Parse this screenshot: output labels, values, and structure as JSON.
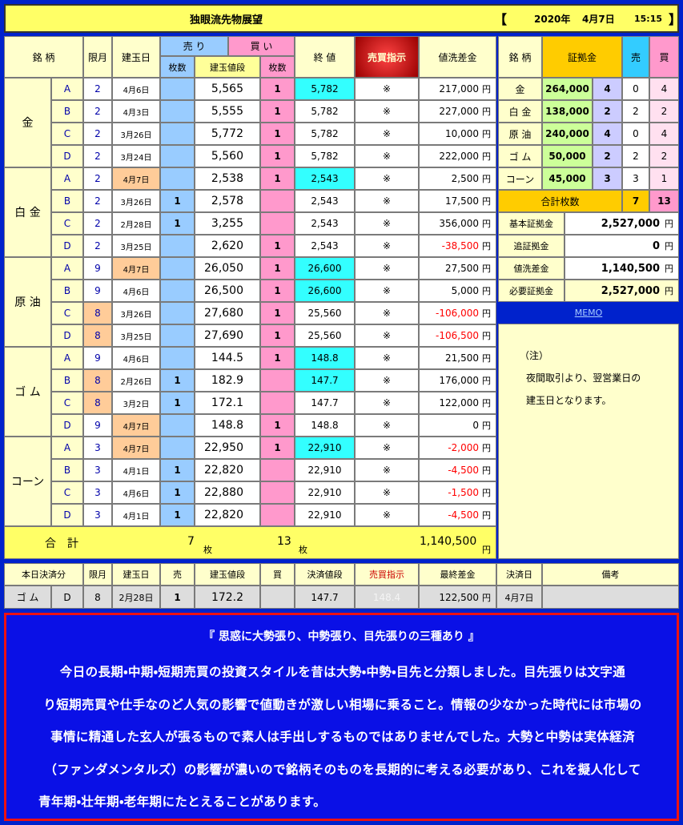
{
  "header": {
    "title": "独眼流先物展望",
    "bracket_open": "【",
    "year": "2020年",
    "date": "4月7日",
    "time": "15:15",
    "bracket_close": "】"
  },
  "main_table": {
    "columns": {
      "name": "銘 柄",
      "month": "限月",
      "date": "建玉日",
      "sell": "売 り",
      "buy": "買 い",
      "close": "終 値",
      "signal": "売買指示",
      "diff": "値洗差金"
    },
    "sub_columns": {
      "sell": "枚数",
      "price": "建玉値段",
      "buy": "枚数"
    },
    "yen": "円",
    "groups": [
      {
        "name": "金",
        "rows": [
          {
            "label": "A",
            "month": "2",
            "date": "4月6日",
            "price": "5,565",
            "buy": "1",
            "close": "5,782",
            "signal": "※",
            "diff": "217,000",
            "colors": {
              "close": "#33ffff"
            }
          },
          {
            "label": "B",
            "month": "2",
            "date": "4月3日",
            "price": "5,555",
            "buy": "1",
            "close": "5,782",
            "signal": "※",
            "diff": "227,000"
          },
          {
            "label": "C",
            "month": "2",
            "date": "3月26日",
            "price": "5,772",
            "buy": "1",
            "close": "5,782",
            "signal": "※",
            "diff": "10,000"
          },
          {
            "label": "D",
            "month": "2",
            "date": "3月24日",
            "price": "5,560",
            "buy": "1",
            "close": "5,782",
            "signal": "※",
            "diff": "222,000"
          }
        ]
      },
      {
        "name": "白 金",
        "rows": [
          {
            "label": "A",
            "month": "2",
            "date": "4月7日",
            "price": "2,538",
            "buy": "1",
            "close": "2,543",
            "signal": "※",
            "diff": "2,500",
            "colors": {
              "date": "#ffcc99",
              "close": "#33ffff"
            }
          },
          {
            "label": "B",
            "month": "2",
            "date": "3月26日",
            "sell": "1",
            "price": "2,578",
            "close": "2,543",
            "signal": "※",
            "diff": "17,500"
          },
          {
            "label": "C",
            "month": "2",
            "date": "2月28日",
            "sell": "1",
            "price": "3,255",
            "close": "2,543",
            "signal": "※",
            "diff": "356,000"
          },
          {
            "label": "D",
            "month": "2",
            "date": "3月25日",
            "price": "2,620",
            "buy": "1",
            "close": "2,543",
            "signal": "※",
            "diff": "-38,500"
          }
        ]
      },
      {
        "name": "原 油",
        "rows": [
          {
            "label": "A",
            "month": "9",
            "date": "4月7日",
            "price": "26,050",
            "buy": "1",
            "close": "26,600",
            "signal": "※",
            "diff": "27,500",
            "colors": {
              "date": "#ffcc99",
              "close": "#33ffff"
            }
          },
          {
            "label": "B",
            "month": "9",
            "date": "4月6日",
            "price": "26,500",
            "buy": "1",
            "close": "26,600",
            "signal": "※",
            "diff": "5,000",
            "colors": {
              "close": "#33ffff"
            }
          },
          {
            "label": "C",
            "month": "8",
            "date": "3月26日",
            "price": "27,680",
            "buy": "1",
            "close": "25,560",
            "signal": "※",
            "diff": "-106,000",
            "colors": {
              "month": "#ffcc99"
            }
          },
          {
            "label": "D",
            "month": "8",
            "date": "3月25日",
            "price": "27,690",
            "buy": "1",
            "close": "25,560",
            "signal": "※",
            "diff": "-106,500",
            "colors": {
              "month": "#ffcc99"
            }
          }
        ]
      },
      {
        "name": "ゴ ム",
        "rows": [
          {
            "label": "A",
            "month": "9",
            "date": "4月6日",
            "price": "144.5",
            "buy": "1",
            "close": "148.8",
            "signal": "※",
            "diff": "21,500",
            "colors": {
              "close": "#33ffff"
            }
          },
          {
            "label": "B",
            "month": "8",
            "date": "2月26日",
            "sell": "1",
            "price": "182.9",
            "close": "147.7",
            "signal": "※",
            "diff": "176,000",
            "colors": {
              "month": "#ffcc99",
              "close": "#33ffff"
            }
          },
          {
            "label": "C",
            "month": "8",
            "date": "3月2日",
            "sell": "1",
            "price": "172.1",
            "close": "147.7",
            "signal": "※",
            "diff": "122,000",
            "colors": {
              "month": "#ffcc99"
            }
          },
          {
            "label": "D",
            "month": "9",
            "date": "4月7日",
            "price": "148.8",
            "buy": "1",
            "close": "148.8",
            "signal": "※",
            "diff": "0",
            "colors": {
              "date": "#ffcc99"
            }
          }
        ]
      },
      {
        "name": "コーン",
        "rows": [
          {
            "label": "A",
            "month": "3",
            "date": "4月7日",
            "price": "22,950",
            "buy": "1",
            "close": "22,910",
            "signal": "※",
            "diff": "-2,000",
            "colors": {
              "date": "#ffcc99",
              "close": "#33ffff"
            }
          },
          {
            "label": "B",
            "month": "3",
            "date": "4月1日",
            "sell": "1",
            "price": "22,820",
            "close": "22,910",
            "signal": "※",
            "diff": "-4,500"
          },
          {
            "label": "C",
            "month": "3",
            "date": "4月6日",
            "sell": "1",
            "price": "22,880",
            "close": "22,910",
            "signal": "※",
            "diff": "-1,500"
          },
          {
            "label": "D",
            "month": "3",
            "date": "4月1日",
            "sell": "1",
            "price": "22,820",
            "close": "22,910",
            "signal": "※",
            "diff": "-4,500"
          }
        ]
      }
    ],
    "total": {
      "label": "合　計",
      "sell": "7",
      "sell_unit": "枚",
      "buy": "13",
      "buy_unit": "枚",
      "diff": "1,140,500",
      "diff_unit": "円"
    }
  },
  "margin_table": {
    "columns": {
      "name": "銘 柄",
      "margin": "証拠金",
      "sell": "売",
      "buy": "買"
    },
    "rows": [
      {
        "name": "金",
        "margin": "264,000",
        "count": "4",
        "sell": "0",
        "buy": "4"
      },
      {
        "name": "白 金",
        "margin": "138,000",
        "count": "2",
        "sell": "2",
        "buy": "2"
      },
      {
        "name": "原 油",
        "margin": "240,000",
        "count": "4",
        "sell": "0",
        "buy": "4"
      },
      {
        "name": "ゴ ム",
        "margin": "50,000",
        "count": "2",
        "sell": "2",
        "buy": "2"
      },
      {
        "name": "コーン",
        "margin": "45,000",
        "count": "3",
        "sell": "3",
        "buy": "1"
      }
    ],
    "total": {
      "label": "合計枚数",
      "sell": "7",
      "buy": "13"
    }
  },
  "summary": {
    "yen": "円",
    "rows": [
      {
        "label": "基本証拠金",
        "value": "2,527,000"
      },
      {
        "label": "追証拠金",
        "value": "0"
      },
      {
        "label": "値洗差金",
        "value": "1,140,500"
      },
      {
        "label": "必要証拠金",
        "value": "2,527,000"
      }
    ]
  },
  "memo": {
    "link": "MEMO",
    "lines": [
      "（注）",
      "夜間取引より、翌営業日の",
      "建玉日となります。"
    ]
  },
  "settlement_table": {
    "columns": [
      "本日決済分",
      "限月",
      "建玉日",
      "売",
      "建玉値段",
      "買",
      "決済値段",
      "売買指示",
      "最終差金",
      "決済日",
      "備考"
    ],
    "row": {
      "name": "ゴ ム",
      "label": "D",
      "month": "8",
      "date": "2月28日",
      "sell": "1",
      "price": "172.2",
      "settle_price": "147.7",
      "signal": "148.4",
      "diff": "122,500",
      "yen": "円",
      "settle_date": "4月7日"
    }
  },
  "note": {
    "title": "『 思惑に大勢張り、中勢張り、目先張りの三種あり 』",
    "lines": [
      "今日の長期・中期・短期売買の投資スタイルを昔は大勢・中勢・目先と分類しました。目先張りは文字通",
      "り短期売買や仕手なのど人気の影響で値動きが激しい相場に乗ること。情報の少なかった時代には市場の",
      "事情に精通した玄人が張るもので素人は手出しするものではありませんでした。大勢と中勢は実体経済",
      "（ファンダメンタルズ）の影響が濃いので銘柄そのものを長期的に考える必要があり、これを擬人化して",
      "青年期・壮年期・老年期にたとえることがあります。"
    ]
  }
}
